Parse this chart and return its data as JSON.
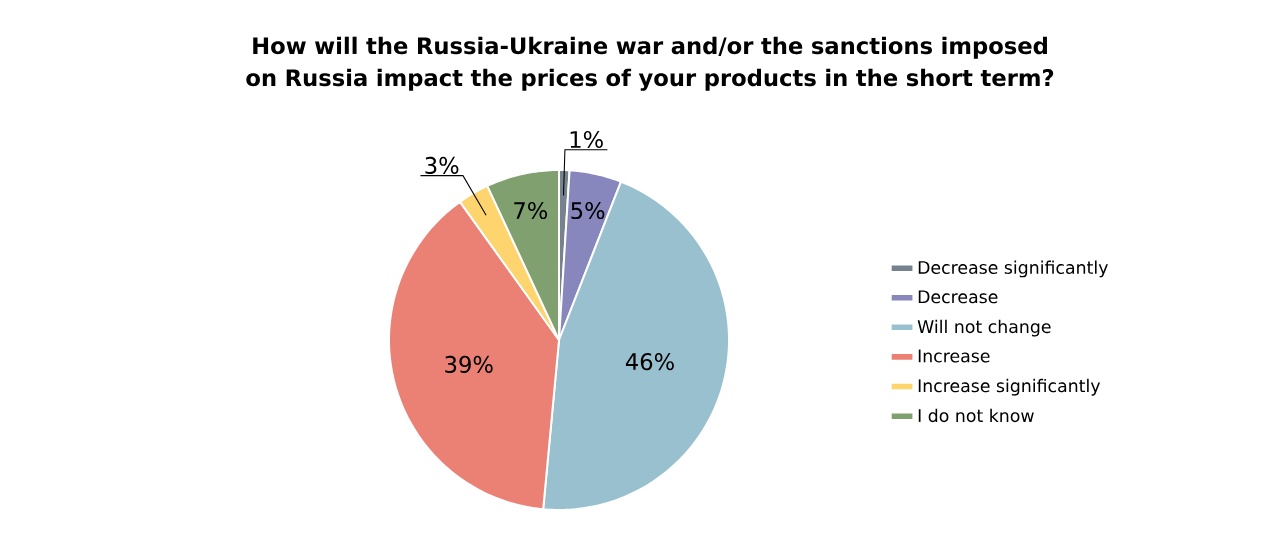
{
  "chart_data": {
    "type": "pie",
    "title": "How will the Russia-Ukraine war and/or the sanctions imposed on Russia impact the prices of your products in the short term?",
    "categories": [
      "Decrease significantly",
      "Decrease",
      "Will not change",
      "Increase",
      "Increase significantly",
      "I do not know"
    ],
    "values": [
      1,
      5,
      46,
      39,
      3,
      7
    ],
    "value_labels": [
      "1%",
      "5%",
      "46%",
      "39%",
      "3%",
      "7%"
    ],
    "colors": [
      "#76838f",
      "#8787bd",
      "#98c0ce",
      "#eb8074",
      "#fdd46e",
      "#80a070"
    ],
    "legend": "right"
  }
}
